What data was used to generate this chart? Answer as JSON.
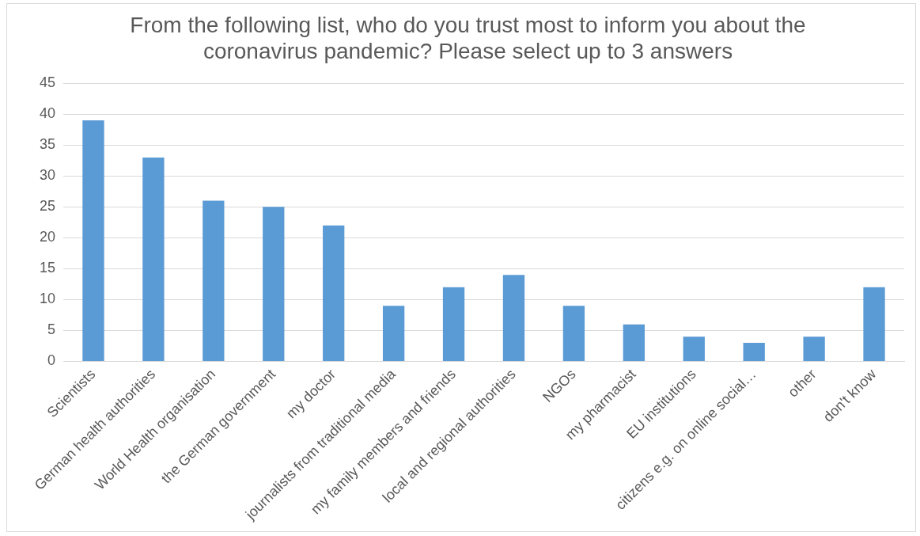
{
  "chart_data": {
    "type": "bar",
    "title": "From the following list, who do you trust most to inform you about the coronavirus pandemic? Please select up to 3 answers",
    "categories": [
      "Scientists",
      "German health authorities",
      "World Health organisation",
      "the German government",
      "my doctor",
      "journalists from traditional media",
      "my family members and friends",
      "local and regional authorities",
      "NGOs",
      "my pharmacist",
      "EU institutions",
      "citizens e.g. on online social…",
      "other",
      "don't know"
    ],
    "values": [
      39,
      33,
      26,
      25,
      22,
      9,
      12,
      14,
      9,
      6,
      4,
      3,
      4,
      12
    ],
    "color": "#5b9bd5",
    "ylim": [
      0,
      45
    ],
    "yticks": [
      0,
      5,
      10,
      15,
      20,
      25,
      30,
      35,
      40,
      45
    ],
    "grid": "y"
  }
}
